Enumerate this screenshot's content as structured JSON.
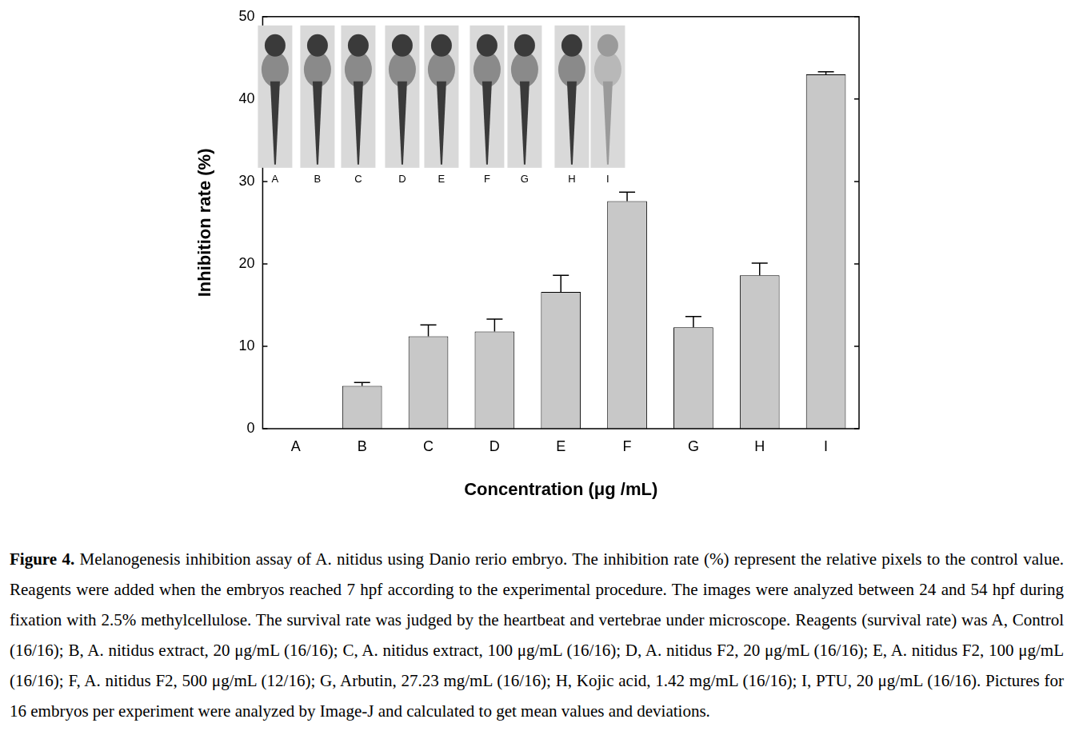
{
  "chart_data": {
    "type": "bar",
    "categories": [
      "A",
      "B",
      "C",
      "D",
      "E",
      "F",
      "G",
      "H",
      "I"
    ],
    "values": [
      0,
      5.2,
      11.2,
      11.8,
      16.6,
      27.6,
      12.3,
      18.6,
      43.0
    ],
    "errors": [
      0,
      0.4,
      1.4,
      1.5,
      2.0,
      1.1,
      1.3,
      1.5,
      0.3
    ],
    "color": "#c8c8c8",
    "xlabel": "Concentration (μg /mL)",
    "ylabel": "Inhibition rate (%)",
    "ylim": [
      0,
      50
    ],
    "yticks": [
      0,
      10,
      20,
      30,
      40,
      50
    ],
    "grid": false
  },
  "caption": {
    "label": "Figure 4.",
    "text": "Melanogenesis inhibition assay of A. nitidus using Danio rerio embryo. The inhibition rate (%) represent the relative pixels to the control value. Reagents were added when the embryos reached 7 hpf according to the experimental procedure. The images were analyzed between 24 and 54 hpf during fixation with 2.5% methylcellulose. The survival rate was judged by the heartbeat and vertebrae under microscope. Reagents (survival rate) was A, Control (16/16); B, A. nitidus extract, 20 μg/mL (16/16); C, A. nitidus extract, 100 μg/mL (16/16); D, A. nitidus F2, 20 μg/mL (16/16); E, A. nitidus F2, 100 μg/mL (16/16); F, A. nitidus F2, 500 μg/mL (12/16); G, Arbutin, 27.23 mg/mL (16/16); H, Kojic acid, 1.42 mg/mL (16/16); I, PTU, 20 μg/mL (16/16). Pictures for 16 embryos per experiment were analyzed by Image-J and calculated to get mean values and deviations."
  }
}
